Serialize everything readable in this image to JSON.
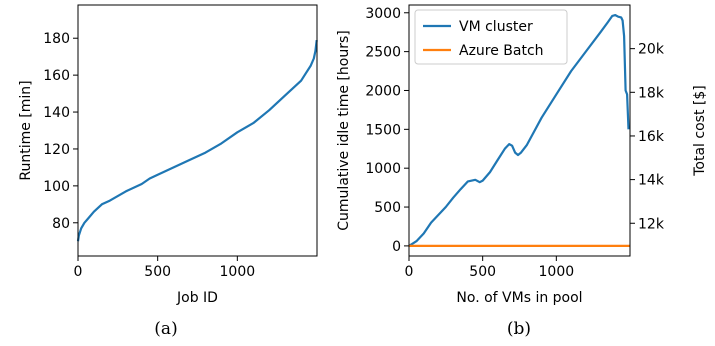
{
  "colors": {
    "vm_cluster": "#1f77b4",
    "azure_batch": "#ff7f0e",
    "axis": "#000000"
  },
  "chart_data": [
    {
      "type": "line",
      "caption": "(a)",
      "xlabel": "Job ID",
      "ylabel": "Runtime [min]",
      "xlim": [
        0,
        1500
      ],
      "ylim": [
        62,
        198
      ],
      "xticks": [
        0,
        500,
        1000
      ],
      "xtick_labels": [
        "0",
        "500",
        "1000"
      ],
      "yticks": [
        80,
        100,
        120,
        140,
        160,
        180
      ],
      "ytick_labels": [
        "80",
        "100",
        "120",
        "140",
        "160",
        "180"
      ],
      "grid": false,
      "series": [
        {
          "color": "#1f77b4",
          "x": [
            0,
            5,
            20,
            40,
            60,
            100,
            150,
            200,
            300,
            400,
            450,
            500,
            600,
            700,
            800,
            900,
            1000,
            1100,
            1200,
            1300,
            1350,
            1400,
            1430,
            1460,
            1480,
            1490,
            1498
          ],
          "y": [
            70,
            73,
            77,
            80,
            82,
            86,
            90,
            92,
            97,
            101,
            104,
            106,
            110,
            114,
            118,
            123,
            129,
            134,
            141,
            149,
            153,
            157,
            161,
            165,
            169,
            173,
            179
          ]
        }
      ]
    },
    {
      "type": "line",
      "caption": "(b)",
      "xlabel": "No. of VMs in pool",
      "ylabel": "Cumulative idle time [hours]",
      "ylabel_right": "Total cost [$]",
      "xlim": [
        0,
        1500
      ],
      "ylim": [
        -130,
        3100
      ],
      "ylim_right": [
        10500,
        22000
      ],
      "xticks": [
        0,
        500,
        1000
      ],
      "xtick_labels": [
        "0",
        "500",
        "1000"
      ],
      "yticks": [
        0,
        500,
        1000,
        1500,
        2000,
        2500,
        3000
      ],
      "ytick_labels": [
        "0",
        "500",
        "1000",
        "1500",
        "2000",
        "2500",
        "3000"
      ],
      "yticks_right": [
        12000,
        14000,
        16000,
        18000,
        20000
      ],
      "ytick_labels_right": [
        "12k",
        "14k",
        "16k",
        "18k",
        "20k"
      ],
      "legend_position": "top-left",
      "grid": false,
      "series": [
        {
          "name": "VM cluster",
          "color": "#1f77b4",
          "axis": "left",
          "x": [
            0,
            50,
            100,
            150,
            200,
            250,
            300,
            350,
            400,
            450,
            480,
            500,
            550,
            600,
            650,
            680,
            700,
            720,
            740,
            760,
            800,
            900,
            1000,
            1100,
            1200,
            1300,
            1350,
            1380,
            1400,
            1420,
            1440,
            1450,
            1460,
            1470,
            1480,
            1490
          ],
          "y": [
            0,
            60,
            160,
            300,
            400,
            500,
            620,
            730,
            830,
            850,
            820,
            840,
            950,
            1100,
            1250,
            1310,
            1290,
            1200,
            1170,
            1200,
            1300,
            1650,
            1950,
            2250,
            2500,
            2750,
            2880,
            2960,
            2970,
            2950,
            2940,
            2900,
            2700,
            2000,
            1950,
            1500
          ]
        },
        {
          "name": "Azure Batch",
          "color": "#ff7f0e",
          "axis": "left",
          "x": [
            0,
            1500
          ],
          "y": [
            0,
            0
          ]
        }
      ]
    }
  ]
}
